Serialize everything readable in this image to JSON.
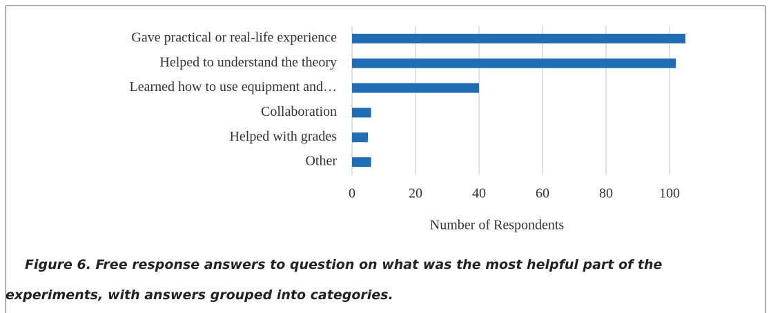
{
  "chart_data": {
    "type": "barh",
    "categories": [
      "Gave practical or real-life experience",
      "Helped to understand the theory",
      "Learned how to use equipment and…",
      "Collaboration",
      "Helped with grades",
      "Other"
    ],
    "values": [
      105,
      102,
      40,
      6,
      5,
      6
    ],
    "color": "#1f6db5",
    "xlim": [
      0,
      110
    ],
    "xticks": [
      0,
      20,
      40,
      60,
      80,
      100
    ],
    "x_label": "Number of Respondents",
    "grid": true,
    "caption": "Figure 6. Free response answers to question on what was the most helpful part of the experiments, with answers grouped into categories."
  }
}
